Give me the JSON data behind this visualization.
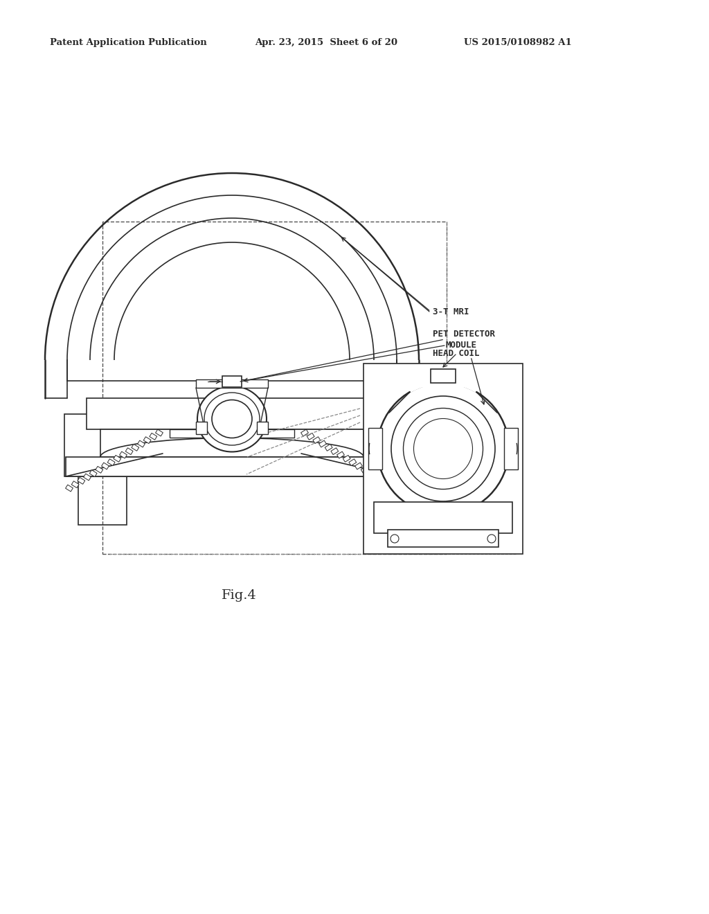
{
  "bg_color": "#ffffff",
  "line_color": "#2a2a2a",
  "header_text1": "Patent Application Publication",
  "header_text2": "Apr. 23, 2015  Sheet 6 of 20",
  "header_text3": "US 2015/0108982 A1",
  "fig_label": "Fig.4",
  "label_3t_mri": "3-T MRI",
  "label_pet1": "PET DETECTOR",
  "label_pet2": "MODULE",
  "label_head_coil": "HEAD COIL"
}
